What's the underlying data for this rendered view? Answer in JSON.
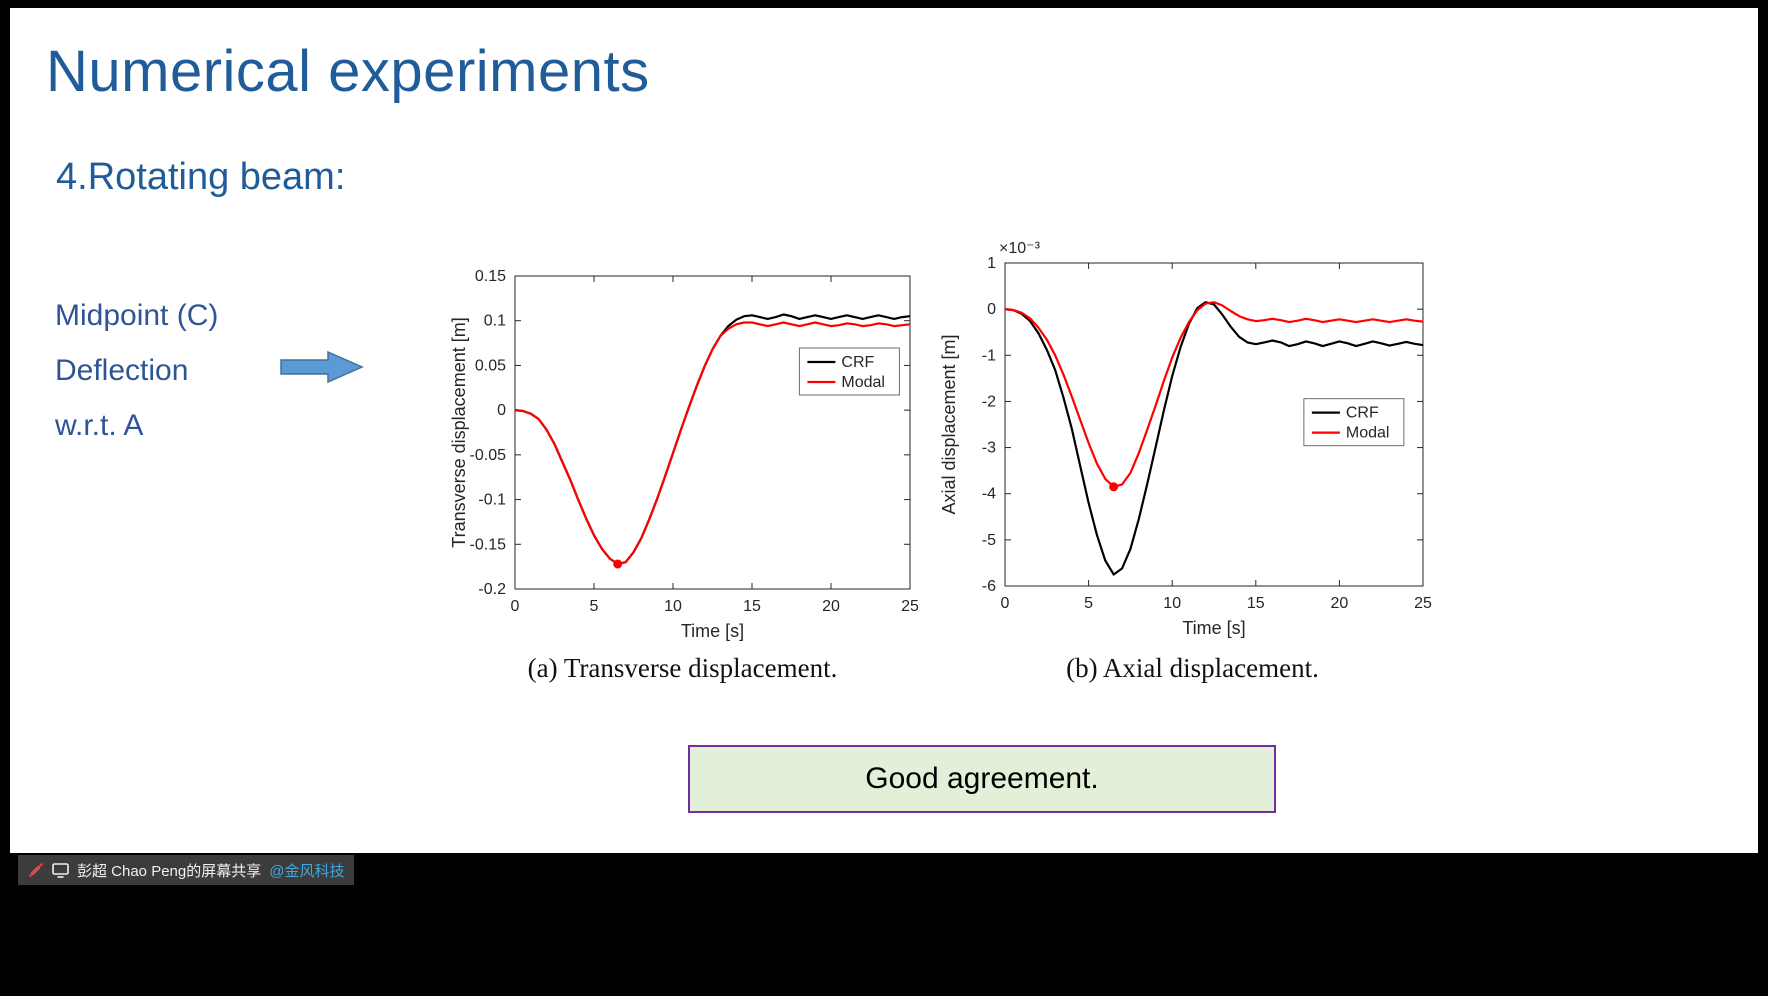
{
  "slide": {
    "title": "Numerical experiments",
    "subtitle": "4.Rotating beam:",
    "left_labels": [
      "Midpoint (C)",
      "Deflection",
      "w.r.t. A"
    ],
    "captions": [
      "(a) Transverse displacement.",
      "(b) Axial displacement."
    ],
    "callout": "Good agreement."
  },
  "statusbar": {
    "share_text": "彭超 Chao Peng的屏幕共享",
    "share_handle": "@金风科技"
  },
  "colors": {
    "title_blue": "#1F5C99",
    "label_blue": "#2F5496",
    "arrow_fill": "#5B9BD5",
    "arrow_border": "#41719C",
    "box_fill": "#E2EFD9",
    "box_border": "#7030A0",
    "handle_blue": "#3FA9E0",
    "crf_black": "#000000",
    "modal_red": "#FF0000"
  },
  "chart_data": [
    {
      "type": "line",
      "title": "",
      "xlabel": "Time [s]",
      "ylabel": "Transverse displacement [m]",
      "xlim": [
        0,
        25
      ],
      "ylim": [
        -0.2,
        0.15
      ],
      "xticks": [
        0,
        5,
        10,
        15,
        20,
        25
      ],
      "yticks": [
        -0.2,
        -0.15,
        -0.1,
        -0.05,
        0,
        0.05,
        0.1,
        0.15
      ],
      "grid": false,
      "legend_position": "inside-upper-right",
      "x": [
        0,
        0.5,
        1,
        1.5,
        2,
        2.5,
        3,
        3.5,
        4,
        4.5,
        5,
        5.5,
        6,
        6.5,
        7,
        7.5,
        8,
        8.5,
        9,
        9.5,
        10,
        10.5,
        11,
        11.5,
        12,
        12.5,
        13,
        13.5,
        14,
        14.5,
        15,
        15.5,
        16,
        16.5,
        17,
        17.5,
        18,
        18.5,
        19,
        19.5,
        20,
        20.5,
        21,
        21.5,
        22,
        22.5,
        23,
        23.5,
        24,
        24.5,
        25
      ],
      "series": [
        {
          "name": "CRF",
          "color": "#000000",
          "values": [
            0,
            -0.001,
            -0.004,
            -0.01,
            -0.022,
            -0.038,
            -0.058,
            -0.078,
            -0.1,
            -0.121,
            -0.14,
            -0.155,
            -0.166,
            -0.172,
            -0.17,
            -0.159,
            -0.143,
            -0.122,
            -0.099,
            -0.074,
            -0.048,
            -0.022,
            0.003,
            0.027,
            0.049,
            0.068,
            0.083,
            0.094,
            0.101,
            0.105,
            0.106,
            0.104,
            0.102,
            0.104,
            0.107,
            0.105,
            0.102,
            0.104,
            0.106,
            0.104,
            0.102,
            0.104,
            0.106,
            0.104,
            0.102,
            0.104,
            0.106,
            0.104,
            0.102,
            0.104,
            0.105
          ]
        },
        {
          "name": "Modal",
          "color": "#FF0000",
          "values": [
            0,
            -0.001,
            -0.004,
            -0.01,
            -0.022,
            -0.038,
            -0.058,
            -0.078,
            -0.1,
            -0.121,
            -0.14,
            -0.155,
            -0.166,
            -0.172,
            -0.17,
            -0.159,
            -0.143,
            -0.122,
            -0.099,
            -0.074,
            -0.048,
            -0.022,
            0.003,
            0.027,
            0.049,
            0.068,
            0.083,
            0.091,
            0.096,
            0.098,
            0.098,
            0.096,
            0.094,
            0.096,
            0.098,
            0.096,
            0.094,
            0.096,
            0.098,
            0.096,
            0.094,
            0.095,
            0.097,
            0.096,
            0.094,
            0.095,
            0.097,
            0.096,
            0.094,
            0.095,
            0.096
          ]
        }
      ],
      "marker": {
        "x": 6.5,
        "y": -0.172,
        "color": "#FF0000"
      }
    },
    {
      "type": "line",
      "title": "",
      "xlabel": "Time [s]",
      "ylabel": "Axial displacement [m]",
      "y_scale_label": "×10⁻³",
      "xlim": [
        0,
        25
      ],
      "ylim": [
        -6,
        1
      ],
      "xticks": [
        0,
        5,
        10,
        15,
        20,
        25
      ],
      "yticks": [
        -6,
        -5,
        -4,
        -3,
        -2,
        -1,
        0,
        1
      ],
      "grid": false,
      "legend_position": "inside-middle-right",
      "x": [
        0,
        0.5,
        1,
        1.5,
        2,
        2.5,
        3,
        3.5,
        4,
        4.5,
        5,
        5.5,
        6,
        6.5,
        7,
        7.5,
        8,
        8.5,
        9,
        9.5,
        10,
        10.5,
        11,
        11.5,
        12,
        12.5,
        13,
        13.5,
        14,
        14.5,
        15,
        15.5,
        16,
        16.5,
        17,
        17.5,
        18,
        18.5,
        19,
        19.5,
        20,
        20.5,
        21,
        21.5,
        22,
        22.5,
        23,
        23.5,
        24,
        24.5,
        25
      ],
      "series": [
        {
          "name": "CRF",
          "color": "#000000",
          "values": [
            0,
            -0.02,
            -0.1,
            -0.26,
            -0.52,
            -0.88,
            -1.32,
            -1.92,
            -2.6,
            -3.4,
            -4.2,
            -4.9,
            -5.45,
            -5.75,
            -5.62,
            -5.2,
            -4.55,
            -3.8,
            -3.0,
            -2.2,
            -1.45,
            -0.82,
            -0.32,
            0.02,
            0.15,
            0.1,
            -0.12,
            -0.38,
            -0.6,
            -0.72,
            -0.76,
            -0.72,
            -0.68,
            -0.72,
            -0.8,
            -0.76,
            -0.7,
            -0.74,
            -0.8,
            -0.75,
            -0.7,
            -0.74,
            -0.8,
            -0.75,
            -0.7,
            -0.74,
            -0.79,
            -0.75,
            -0.71,
            -0.75,
            -0.78
          ]
        },
        {
          "name": "Modal",
          "color": "#FF0000",
          "values": [
            0,
            -0.02,
            -0.08,
            -0.2,
            -0.4,
            -0.66,
            -1.0,
            -1.42,
            -1.9,
            -2.4,
            -2.9,
            -3.35,
            -3.68,
            -3.85,
            -3.8,
            -3.55,
            -3.12,
            -2.62,
            -2.1,
            -1.56,
            -1.05,
            -0.62,
            -0.28,
            -0.02,
            0.12,
            0.15,
            0.08,
            -0.04,
            -0.15,
            -0.22,
            -0.26,
            -0.24,
            -0.21,
            -0.24,
            -0.28,
            -0.25,
            -0.21,
            -0.24,
            -0.28,
            -0.25,
            -0.22,
            -0.25,
            -0.28,
            -0.25,
            -0.22,
            -0.25,
            -0.28,
            -0.25,
            -0.22,
            -0.25,
            -0.27
          ]
        }
      ],
      "marker": {
        "x": 6.5,
        "y": -3.85,
        "color": "#FF0000"
      }
    }
  ]
}
